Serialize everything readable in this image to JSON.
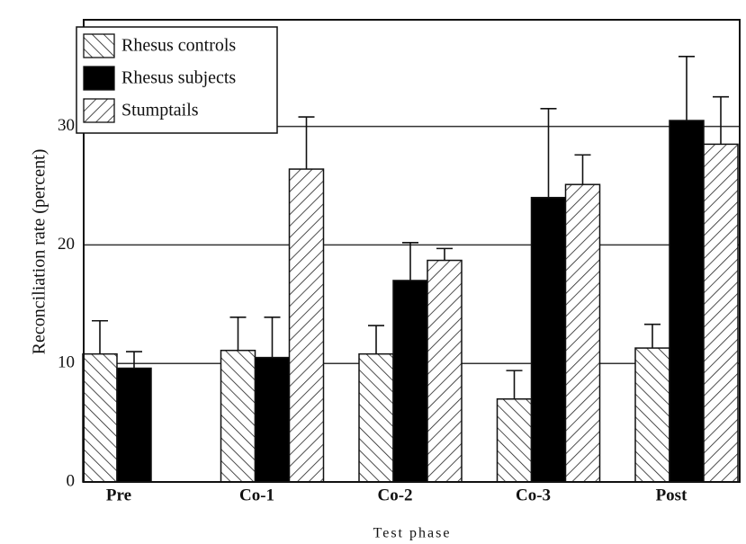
{
  "chart_data": {
    "type": "bar",
    "xlabel": "Test phase",
    "ylabel": "Reconciliation rate (percent)",
    "categories": [
      "Pre",
      "Co-1",
      "Co-2",
      "Co-3",
      "Post"
    ],
    "series": [
      {
        "name": "Rhesus controls",
        "color": "#000000",
        "pattern": "backslash",
        "values": [
          10.8,
          11.1,
          10.8,
          7.0,
          11.3
        ],
        "errors": [
          2.8,
          2.8,
          2.4,
          2.4,
          2.0
        ]
      },
      {
        "name": "Rhesus subjects",
        "color": "#000000",
        "pattern": "solid",
        "values": [
          9.6,
          10.5,
          17.0,
          24.0,
          30.5
        ],
        "errors": [
          1.4,
          3.4,
          3.2,
          7.5,
          5.4
        ]
      },
      {
        "name": "Stumptails",
        "color": "#000000",
        "pattern": "slash",
        "values": [
          null,
          26.4,
          18.7,
          25.1,
          28.5
        ],
        "errors": [
          null,
          4.4,
          1.0,
          2.5,
          4.0
        ]
      }
    ],
    "ylim": [
      0,
      39
    ],
    "yticks": [
      0,
      10,
      20,
      30
    ],
    "grid": true,
    "legend": "upper left"
  }
}
